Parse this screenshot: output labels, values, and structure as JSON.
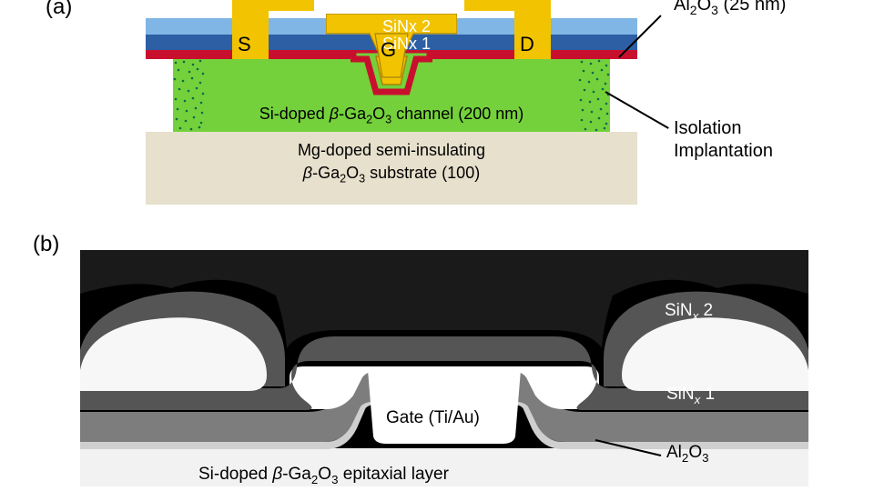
{
  "panel_a_label": "(a)",
  "panel_b_label": "(b)",
  "schematic": {
    "colors": {
      "substrate": "#e6e0cc",
      "channel": "#74d13b",
      "implant_dot": "#0a6b4a",
      "al2o3": "#c8102e",
      "sinx1": "#2d5fa5",
      "sinx2": "#7fb6e6",
      "metal": "#f2c300",
      "gate_border": "#a8820a"
    },
    "labels": {
      "sinx2": "SiNx 2",
      "sinx1": "SiNx 1",
      "source": "S",
      "drain": "D",
      "gate": "G",
      "channel_html": "Si-doped <i>β</i>-Ga<sub>2</sub>O<sub>3</sub> channel (200 nm)",
      "substrate_line1_html": "Mg-doped semi-insulating",
      "substrate_line2_html": "<i>β</i>-Ga<sub>2</sub>O<sub>3</sub> substrate (100)"
    },
    "callouts": {
      "al2o3_html": "Al<sub>2</sub>O<sub>3</sub> (25 nm)",
      "isolation_line1": "Isolation",
      "isolation_line2": "Implantation"
    }
  },
  "sem": {
    "colors": {
      "bg": "#000000",
      "epi": "#f2f2f2",
      "gate_metal": "#ffffff",
      "al2o3": "#cfcfcf",
      "sinx1": "#7d7d7d",
      "sinx2": "#555555",
      "sd_metal": "#f7f7f7",
      "top_dark": "#1a1a1a"
    },
    "labels": {
      "sinx2_html": "SiN<sub><i>x</i></sub> 2",
      "sinx1_html": "SiN<sub><i>x</i></sub> 1",
      "al2o3_html": "Al<sub>2</sub>O<sub>3</sub>",
      "gate": "Gate (Ti/Au)",
      "epi_html": "Si-doped <i>β</i>-Ga<sub>2</sub>O<sub>3</sub> epitaxial layer"
    }
  }
}
